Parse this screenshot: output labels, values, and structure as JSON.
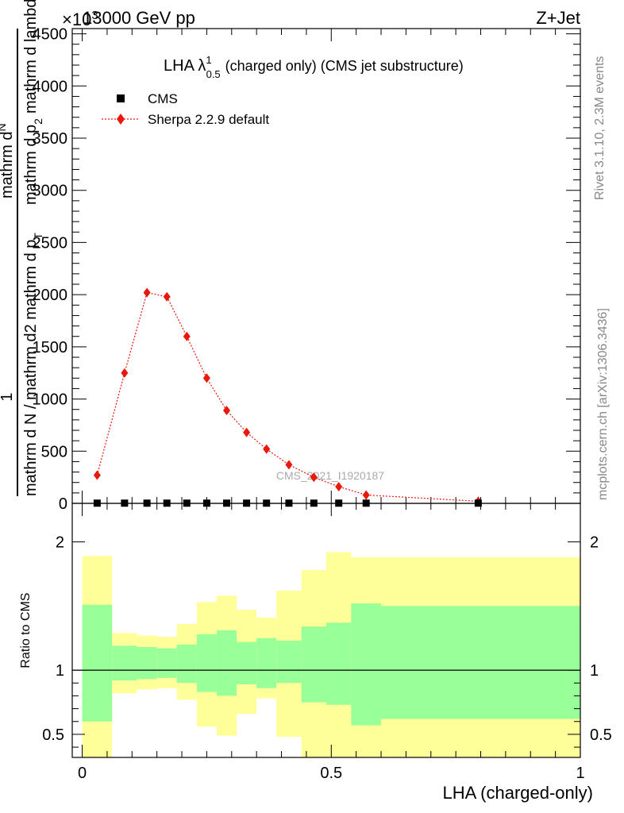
{
  "header": {
    "left": "13000 GeV pp",
    "right": "Z+Jet",
    "exponent": "×10",
    "exponent_power": "3"
  },
  "side_text": {
    "rivet": "Rivet 3.1.10,  2.3M events",
    "mcplots": "mcplots.cern.ch [arXiv:1306.3436]"
  },
  "watermark": "CMS_2021_I1920187",
  "chart_data": [
    {
      "type": "scatter",
      "title_main": "LHA λ",
      "title_sup": "1",
      "title_sub": "0.5",
      "title_rest": "(charged only) (CMS jet substructure)",
      "ylabel_top": "1",
      "ylabel_den": "mathrm d N / mathrm d2 mathrm d p",
      "ylabel_num": "mathrm d",
      "ylabel_sup_den": "T",
      "ylabel_num_sub": "2",
      "ylabel_sup_num": "N",
      "ylabel_lambda": "mathrm d p",
      "ylabel_lambda_tail": "mathrm d lambda",
      "xlim": [
        -0.02,
        1.0
      ],
      "ylim": [
        0,
        4550
      ],
      "yticks": [
        0,
        500,
        1000,
        1500,
        2000,
        2500,
        3000,
        3500,
        4000,
        4500
      ],
      "ytick_labels": [
        "0",
        "500",
        "1000",
        "1500",
        "2000",
        "2500",
        "3000",
        "3500",
        "4000",
        "4500"
      ],
      "legend_position": "top-left",
      "series": [
        {
          "name": "CMS",
          "color": "#000000",
          "marker": "square",
          "x": [
            0.03,
            0.085,
            0.13,
            0.17,
            0.21,
            0.25,
            0.29,
            0.33,
            0.37,
            0.415,
            0.465,
            0.515,
            0.57,
            0.795
          ],
          "y": [
            2,
            2,
            2,
            2,
            2,
            2,
            2,
            2,
            2,
            2,
            2,
            2,
            2,
            2
          ]
        },
        {
          "name": "Sherpa 2.2.9 default",
          "color": "#e8190c",
          "marker": "diamond",
          "line": "dotted",
          "x": [
            0.03,
            0.085,
            0.13,
            0.17,
            0.21,
            0.25,
            0.29,
            0.33,
            0.37,
            0.415,
            0.465,
            0.515,
            0.57,
            0.795
          ],
          "y": [
            270,
            1250,
            2020,
            1980,
            1600,
            1200,
            890,
            680,
            520,
            370,
            250,
            160,
            80,
            20
          ]
        }
      ]
    },
    {
      "type": "area",
      "ylabel": "Ratio to CMS",
      "xlabel": "LHA (charged-only)",
      "xlim": [
        -0.02,
        1.0
      ],
      "ylim": [
        0.32,
        2.3
      ],
      "yticks": [
        0.5,
        1,
        2
      ],
      "ytick_labels": [
        "0.5",
        "1",
        "2"
      ],
      "xticks": [
        0,
        0.5,
        1
      ],
      "xtick_labels": [
        "0",
        "0.5",
        "1"
      ],
      "reference_line": 1,
      "bands": {
        "edges": [
          0,
          0.06,
          0.11,
          0.15,
          0.19,
          0.23,
          0.27,
          0.31,
          0.35,
          0.39,
          0.44,
          0.49,
          0.54,
          0.6,
          1.0
        ],
        "yellow_color": "#ffff99",
        "green_color": "#99ff99",
        "yellow_lo": [
          0.32,
          0.82,
          0.85,
          0.86,
          0.77,
          0.56,
          0.49,
          0.66,
          0.78,
          0.48,
          0.32,
          0.32,
          0.32,
          0.32
        ],
        "yellow_hi": [
          1.89,
          1.29,
          1.27,
          1.26,
          1.36,
          1.53,
          1.58,
          1.47,
          1.41,
          1.62,
          1.78,
          1.92,
          1.88,
          1.88
        ],
        "green_lo": [
          0.6,
          0.92,
          0.93,
          0.94,
          0.9,
          0.83,
          0.8,
          0.89,
          0.86,
          0.9,
          0.75,
          0.73,
          0.57,
          0.62
        ],
        "green_hi": [
          1.51,
          1.19,
          1.18,
          1.17,
          1.2,
          1.28,
          1.31,
          1.22,
          1.25,
          1.23,
          1.34,
          1.37,
          1.52,
          1.5
        ]
      }
    }
  ]
}
